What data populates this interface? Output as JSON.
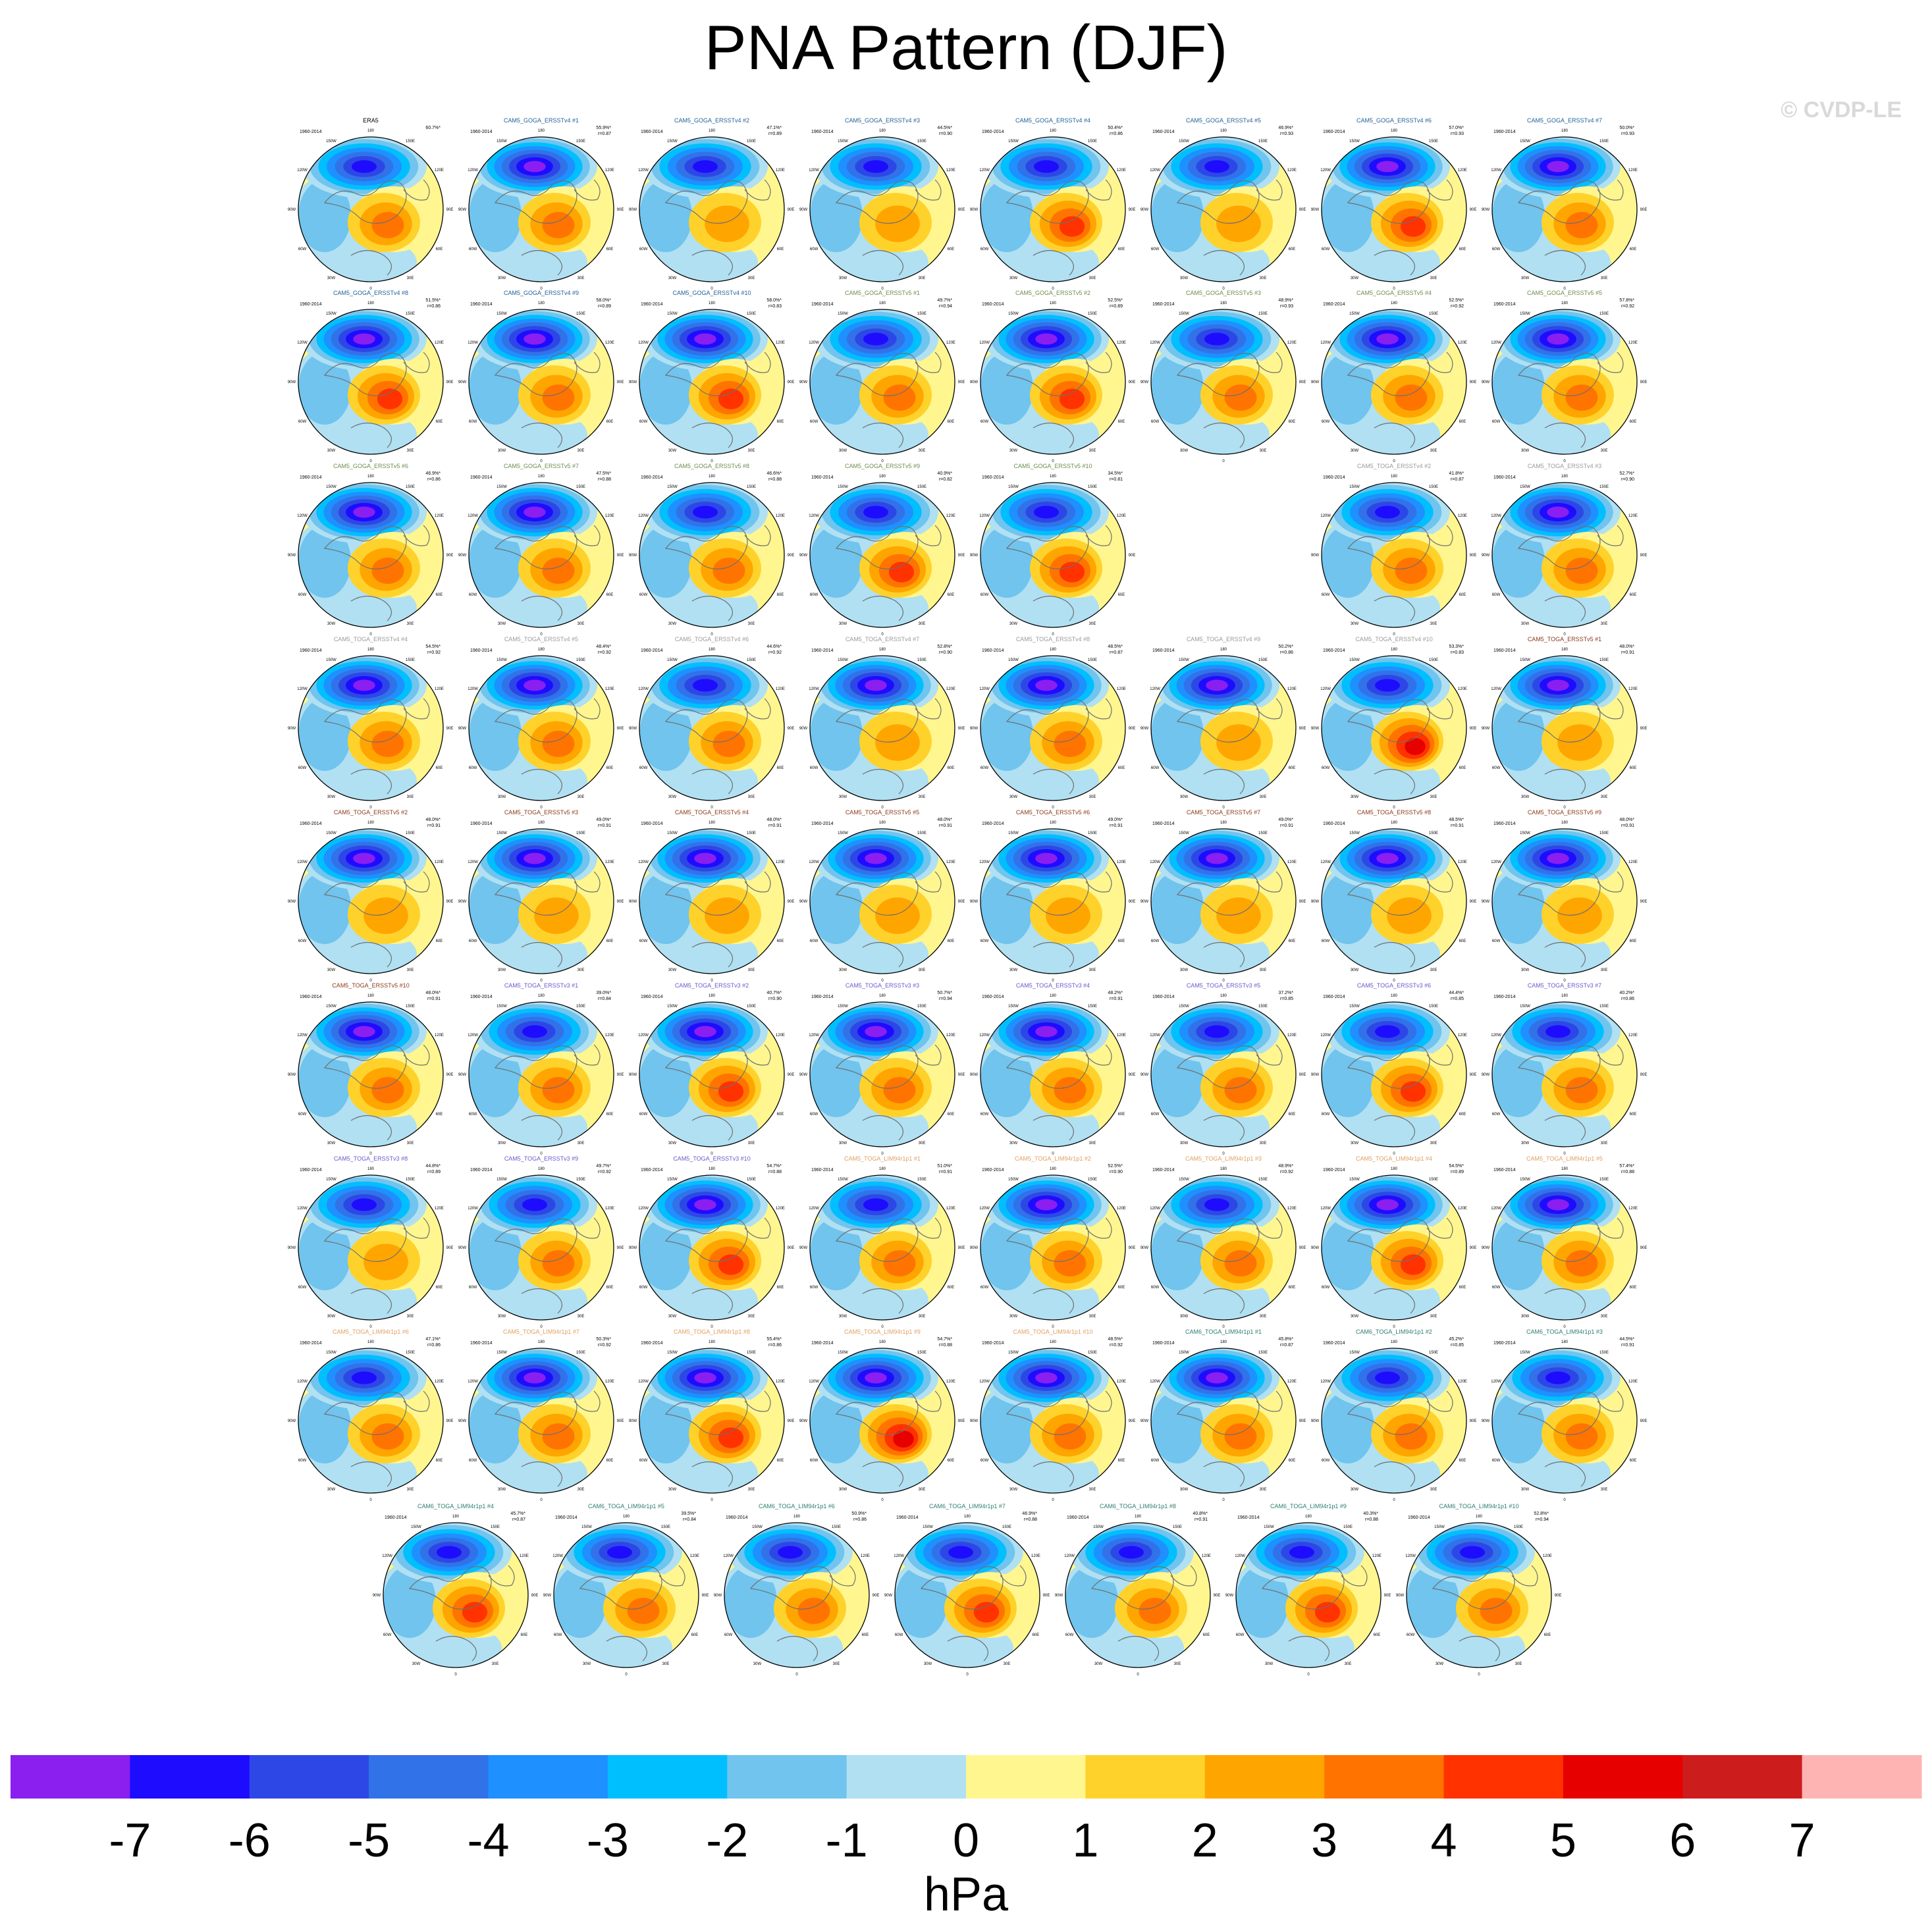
{
  "title": "PNA Pattern (DJF)",
  "copyright": "© CVDP-LE",
  "units": "hPa",
  "chart_data": {
    "type": "heatmap",
    "title": "PNA Pattern (DJF)",
    "colorbar": {
      "label": "hPa",
      "ticks": [
        "-7",
        "-6",
        "-5",
        "-4",
        "-3",
        "-2",
        "-1",
        "0",
        "1",
        "2",
        "3",
        "4",
        "5",
        "6",
        "7"
      ],
      "colors": [
        "#8a1ff0",
        "#1e0cff",
        "#2d47e6",
        "#3272e8",
        "#1e90ff",
        "#00bfff",
        "#70c4ee",
        "#b0e0f2",
        "#fff68f",
        "#ffd22b",
        "#ffa500",
        "#ff7400",
        "#ff3200",
        "#e60000",
        "#cd1c1c",
        "#ffb4b4"
      ]
    },
    "panel_common": {
      "period": "1960-2014",
      "lon_labels": [
        "180",
        "150W",
        "150E",
        "120W",
        "120E",
        "90W",
        "90E",
        "60W",
        "60E",
        "30W",
        "30E",
        "0"
      ]
    },
    "panels": [
      {
        "name": "ERA5",
        "pct": "60.7%*",
        "r": "",
        "color": "#000000",
        "strength": 0.55,
        "blue": 0.75
      },
      {
        "name": "CAM5_GOGA_ERSSTv4 #1",
        "pct": "55.9%*",
        "r": "r=0.87",
        "color": "#1f5f99",
        "strength": 0.45,
        "blue": 0.95
      },
      {
        "name": "CAM5_GOGA_ERSSTv4 #2",
        "pct": "47.1%*",
        "r": "r=0.89",
        "color": "#1f5f99",
        "strength": 0.3,
        "blue": 0.85
      },
      {
        "name": "CAM5_GOGA_ERSSTv4 #3",
        "pct": "44.5%*",
        "r": "r=0.90",
        "color": "#1f5f99",
        "strength": 0.35,
        "blue": 0.8
      },
      {
        "name": "CAM5_GOGA_ERSSTv4 #4",
        "pct": "50.4%*",
        "r": "r=0.86",
        "color": "#1f5f99",
        "strength": 0.85,
        "blue": 0.85
      },
      {
        "name": "CAM5_GOGA_ERSSTv4 #5",
        "pct": "46.9%*",
        "r": "r=0.93",
        "color": "#1f5f99",
        "strength": 0.35,
        "blue": 0.8
      },
      {
        "name": "CAM5_GOGA_ERSSTv4 #6",
        "pct": "57.0%*",
        "r": "r=0.93",
        "color": "#1f5f99",
        "strength": 0.7,
        "blue": 0.9
      },
      {
        "name": "CAM5_GOGA_ERSSTv4 #7",
        "pct": "50.0%*",
        "r": "r=0.93",
        "color": "#1f5f99",
        "strength": 0.55,
        "blue": 0.9
      },
      {
        "name": "CAM5_GOGA_ERSSTv4 #8",
        "pct": "51.5%*",
        "r": "r=0.86",
        "color": "#1f5f99",
        "strength": 0.7,
        "blue": 0.9
      },
      {
        "name": "CAM5_GOGA_ERSSTv4 #9",
        "pct": "58.0%*",
        "r": "r=0.89",
        "color": "#1f5f99",
        "strength": 0.6,
        "blue": 1.0
      },
      {
        "name": "CAM5_GOGA_ERSSTv4 #10",
        "pct": "58.0%*",
        "r": "r=0.83",
        "color": "#1f5f99",
        "strength": 0.75,
        "blue": 0.95
      },
      {
        "name": "CAM5_GOGA_ERSSTv5 #1",
        "pct": "49.7%*",
        "r": "r=0.94",
        "color": "#6b8e4e",
        "strength": 0.55,
        "blue": 0.85
      },
      {
        "name": "CAM5_GOGA_ERSSTv5 #2",
        "pct": "52.5%*",
        "r": "r=0.89",
        "color": "#6b8e4e",
        "strength": 0.85,
        "blue": 0.9
      },
      {
        "name": "CAM5_GOGA_ERSSTv5 #3",
        "pct": "48.9%*",
        "r": "r=0.93",
        "color": "#6b8e4e",
        "strength": 0.55,
        "blue": 0.85
      },
      {
        "name": "CAM5_GOGA_ERSSTv5 #4",
        "pct": "52.5%*",
        "r": "r=0.92",
        "color": "#6b8e4e",
        "strength": 0.6,
        "blue": 0.9
      },
      {
        "name": "CAM5_GOGA_ERSSTv5 #5",
        "pct": "57.8%*",
        "r": "r=0.92",
        "color": "#6b8e4e",
        "strength": 0.55,
        "blue": 0.9
      },
      {
        "name": "CAM5_GOGA_ERSSTv5 #6",
        "pct": "46.9%*",
        "r": "r=0.86",
        "color": "#6b8e4e",
        "strength": 0.45,
        "blue": 0.95
      },
      {
        "name": "CAM5_GOGA_ERSSTv5 #7",
        "pct": "47.5%*",
        "r": "r=0.88",
        "color": "#6b8e4e",
        "strength": 0.55,
        "blue": 0.9
      },
      {
        "name": "CAM5_GOGA_ERSSTv5 #8",
        "pct": "46.6%*",
        "r": "r=0.88",
        "color": "#6b8e4e",
        "strength": 0.6,
        "blue": 0.85
      },
      {
        "name": "CAM5_GOGA_ERSSTv5 #9",
        "pct": "40.9%*",
        "r": "r=0.82",
        "color": "#6b8e4e",
        "strength": 0.85,
        "blue": 0.7
      },
      {
        "name": "CAM5_GOGA_ERSSTv5 #10",
        "pct": "34.5%*",
        "r": "r=0.81",
        "color": "#6b8e4e",
        "strength": 0.7,
        "blue": 0.8
      },
      {
        "name": "CAM5_TOGA_ERSSTv4 #2",
        "pct": "41.8%*",
        "r": "r=0.87",
        "color": "#9a9a9a",
        "strength": 0.6,
        "blue": 0.85
      },
      {
        "name": "CAM5_TOGA_ERSSTv4 #3",
        "pct": "52.7%*",
        "r": "r=0.90",
        "color": "#9a9a9a",
        "strength": 0.6,
        "blue": 0.9
      },
      {
        "name": "CAM5_TOGA_ERSSTv4 #4",
        "pct": "54.5%*",
        "r": "r=0.92",
        "color": "#9a9a9a",
        "strength": 0.55,
        "blue": 0.95
      },
      {
        "name": "CAM5_TOGA_ERSSTv4 #5",
        "pct": "48.4%*",
        "r": "r=0.92",
        "color": "#9a9a9a",
        "strength": 0.45,
        "blue": 0.9
      },
      {
        "name": "CAM5_TOGA_ERSSTv4 #6",
        "pct": "44.6%*",
        "r": "r=0.92",
        "color": "#9a9a9a",
        "strength": 0.4,
        "blue": 0.85
      },
      {
        "name": "CAM5_TOGA_ERSSTv4 #7",
        "pct": "52.8%*",
        "r": "r=0.90",
        "color": "#9a9a9a",
        "strength": 0.35,
        "blue": 0.95
      },
      {
        "name": "CAM5_TOGA_ERSSTv4 #8",
        "pct": "48.5%*",
        "r": "r=0.87",
        "color": "#9a9a9a",
        "strength": 0.5,
        "blue": 0.9
      },
      {
        "name": "CAM5_TOGA_ERSSTv4 #9",
        "pct": "50.2%*",
        "r": "r=0.86",
        "color": "#9a9a9a",
        "strength": 0.35,
        "blue": 0.9
      },
      {
        "name": "CAM5_TOGA_ERSSTv4 #10",
        "pct": "53.3%*",
        "r": "r=0.83",
        "color": "#9a9a9a",
        "strength": 1.0,
        "blue": 0.85
      },
      {
        "name": "CAM5_TOGA_ERSSTv5 #1",
        "pct": "48.0%*",
        "r": "r=0.91",
        "color": "#8b3a1a",
        "strength": 0.35,
        "blue": 0.95
      },
      {
        "name": "CAM5_TOGA_ERSSTv5 #2",
        "pct": "48.0%*",
        "r": "r=0.91",
        "color": "#8b3a1a",
        "strength": 0.35,
        "blue": 0.95
      },
      {
        "name": "CAM5_TOGA_ERSSTv5 #3",
        "pct": "49.0%*",
        "r": "r=0.91",
        "color": "#8b3a1a",
        "strength": 0.35,
        "blue": 0.95
      },
      {
        "name": "CAM5_TOGA_ERSSTv5 #4",
        "pct": "48.0%*",
        "r": "r=0.91",
        "color": "#8b3a1a",
        "strength": 0.35,
        "blue": 0.95
      },
      {
        "name": "CAM5_TOGA_ERSSTv5 #5",
        "pct": "48.0%*",
        "r": "r=0.91",
        "color": "#8b3a1a",
        "strength": 0.35,
        "blue": 0.95
      },
      {
        "name": "CAM5_TOGA_ERSSTv5 #6",
        "pct": "49.0%*",
        "r": "r=0.91",
        "color": "#8b3a1a",
        "strength": 0.35,
        "blue": 0.95
      },
      {
        "name": "CAM5_TOGA_ERSSTv5 #7",
        "pct": "49.0%*",
        "r": "r=0.91",
        "color": "#8b3a1a",
        "strength": 0.35,
        "blue": 0.95
      },
      {
        "name": "CAM5_TOGA_ERSSTv5 #8",
        "pct": "48.5%*",
        "r": "r=0.91",
        "color": "#8b3a1a",
        "strength": 0.35,
        "blue": 0.95
      },
      {
        "name": "CAM5_TOGA_ERSSTv5 #9",
        "pct": "48.0%*",
        "r": "r=0.91",
        "color": "#8b3a1a",
        "strength": 0.35,
        "blue": 0.95
      },
      {
        "name": "CAM5_TOGA_ERSSTv5 #10",
        "pct": "48.0%*",
        "r": "r=0.91",
        "color": "#8b3a1a",
        "strength": 0.4,
        "blue": 0.95
      },
      {
        "name": "CAM5_TOGA_ERSSTv3 #1",
        "pct": "39.0%*",
        "r": "r=0.84",
        "color": "#6a5acd",
        "strength": 0.55,
        "blue": 0.85
      },
      {
        "name": "CAM5_TOGA_ERSSTv3 #2",
        "pct": "40.7%*",
        "r": "r=0.90",
        "color": "#6a5acd",
        "strength": 0.65,
        "blue": 0.9
      },
      {
        "name": "CAM5_TOGA_ERSSTv3 #3",
        "pct": "50.7%*",
        "r": "r=0.94",
        "color": "#6a5acd",
        "strength": 0.45,
        "blue": 0.9
      },
      {
        "name": "CAM5_TOGA_ERSSTv3 #4",
        "pct": "48.2%*",
        "r": "r=0.91",
        "color": "#6a5acd",
        "strength": 0.55,
        "blue": 0.9
      },
      {
        "name": "CAM5_TOGA_ERSSTv3 #5",
        "pct": "37.2%*",
        "r": "r=0.85",
        "color": "#6a5acd",
        "strength": 0.55,
        "blue": 0.85
      },
      {
        "name": "CAM5_TOGA_ERSSTv3 #6",
        "pct": "44.4%*",
        "r": "r=0.85",
        "color": "#6a5acd",
        "strength": 0.65,
        "blue": 0.85
      },
      {
        "name": "CAM5_TOGA_ERSSTv3 #7",
        "pct": "40.2%*",
        "r": "r=0.86",
        "color": "#6a5acd",
        "strength": 0.6,
        "blue": 0.8
      },
      {
        "name": "CAM5_TOGA_ERSSTv3 #8",
        "pct": "44.8%*",
        "r": "r=0.89",
        "color": "#6a5acd",
        "strength": 0.3,
        "blue": 0.85
      },
      {
        "name": "CAM5_TOGA_ERSSTv3 #9",
        "pct": "49.7%*",
        "r": "r=0.92",
        "color": "#6a5acd",
        "strength": 0.45,
        "blue": 0.85
      },
      {
        "name": "CAM5_TOGA_ERSSTv3 #10",
        "pct": "54.7%*",
        "r": "r=0.88",
        "color": "#6a5acd",
        "strength": 0.65,
        "blue": 1.0
      },
      {
        "name": "CAM5_TOGA_LIM94r1p1 #1",
        "pct": "51.0%*",
        "r": "r=0.91",
        "color": "#e0a060",
        "strength": 0.5,
        "blue": 0.85
      },
      {
        "name": "CAM5_TOGA_LIM94r1p1 #2",
        "pct": "52.5%*",
        "r": "r=0.90",
        "color": "#e0a060",
        "strength": 0.45,
        "blue": 0.9
      },
      {
        "name": "CAM5_TOGA_LIM94r1p1 #3",
        "pct": "48.9%*",
        "r": "r=0.92",
        "color": "#e0a060",
        "strength": 0.6,
        "blue": 0.85
      },
      {
        "name": "CAM5_TOGA_LIM94r1p1 #4",
        "pct": "54.5%*",
        "r": "r=0.89",
        "color": "#e0a060",
        "strength": 0.7,
        "blue": 1.0
      },
      {
        "name": "CAM5_TOGA_LIM94r1p1 #5",
        "pct": "57.4%*",
        "r": "r=0.88",
        "color": "#e0a060",
        "strength": 0.6,
        "blue": 1.0
      },
      {
        "name": "CAM5_TOGA_LIM94r1p1 #6",
        "pct": "47.1%*",
        "r": "r=0.86",
        "color": "#e0a060",
        "strength": 0.5,
        "blue": 0.75
      },
      {
        "name": "CAM5_TOGA_LIM94r1p1 #7",
        "pct": "50.3%*",
        "r": "r=0.92",
        "color": "#e0a060",
        "strength": 0.55,
        "blue": 0.95
      },
      {
        "name": "CAM5_TOGA_LIM94r1p1 #8",
        "pct": "55.4%*",
        "r": "r=0.86",
        "color": "#e0a060",
        "strength": 0.8,
        "blue": 0.95
      },
      {
        "name": "CAM5_TOGA_LIM94r1p1 #9",
        "pct": "54.7%*",
        "r": "r=0.88",
        "color": "#e0a060",
        "strength": 0.9,
        "blue": 0.95
      },
      {
        "name": "CAM5_TOGA_LIM94r1p1 #10",
        "pct": "48.5%*",
        "r": "r=0.92",
        "color": "#e0a060",
        "strength": 0.5,
        "blue": 0.9
      },
      {
        "name": "CAM6_TOGA_LIM94r1p1 #1",
        "pct": "45.8%*",
        "r": "r=0.87",
        "color": "#2e7d6e",
        "strength": 0.55,
        "blue": 0.9
      },
      {
        "name": "CAM6_TOGA_LIM94r1p1 #2",
        "pct": "45.2%*",
        "r": "r=0.85",
        "color": "#2e7d6e",
        "strength": 0.6,
        "blue": 0.85
      },
      {
        "name": "CAM6_TOGA_LIM94r1p1 #3",
        "pct": "44.5%*",
        "r": "r=0.91",
        "color": "#2e7d6e",
        "strength": 0.5,
        "blue": 0.85
      },
      {
        "name": "CAM6_TOGA_LIM94r1p1 #4",
        "pct": "45.7%*",
        "r": "r=0.87",
        "color": "#2e7d6e",
        "strength": 0.65,
        "blue": 0.85
      },
      {
        "name": "CAM6_TOGA_LIM94r1p1 #5",
        "pct": "39.5%*",
        "r": "r=0.84",
        "color": "#2e7d6e",
        "strength": 0.55,
        "blue": 0.8
      },
      {
        "name": "CAM6_TOGA_LIM94r1p1 #6",
        "pct": "50.9%*",
        "r": "r=0.86",
        "color": "#2e7d6e",
        "strength": 0.6,
        "blue": 0.85
      },
      {
        "name": "CAM6_TOGA_LIM94r1p1 #7",
        "pct": "46.9%*",
        "r": "r=0.88",
        "color": "#2e7d6e",
        "strength": 0.8,
        "blue": 0.8
      },
      {
        "name": "CAM6_TOGA_LIM94r1p1 #8",
        "pct": "40.8%*",
        "r": "r=0.91",
        "color": "#2e7d6e",
        "strength": 0.55,
        "blue": 0.85
      },
      {
        "name": "CAM6_TOGA_LIM94r1p1 #9",
        "pct": "40.3%*",
        "r": "r=0.88",
        "color": "#2e7d6e",
        "strength": 0.7,
        "blue": 0.8
      },
      {
        "name": "CAM6_TOGA_LIM94r1p1 #10",
        "pct": "52.8%*",
        "r": "r=0.94",
        "color": "#2e7d6e",
        "strength": 0.45,
        "blue": 0.8
      }
    ]
  }
}
